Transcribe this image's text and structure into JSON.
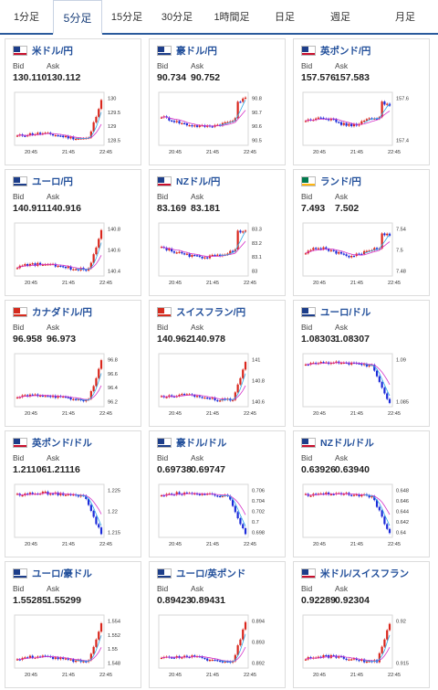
{
  "tabs": [
    {
      "label": "1分足",
      "active": false
    },
    {
      "label": "5分足",
      "active": true
    },
    {
      "label": "15分足",
      "active": false
    },
    {
      "label": "30分足",
      "active": false
    },
    {
      "label": "1時間足",
      "active": false
    },
    {
      "label": "日足",
      "active": false
    },
    {
      "label": "週足",
      "active": false
    },
    {
      "label": "月足",
      "active": false
    }
  ],
  "labels": {
    "bid": "Bid",
    "ask": "Ask"
  },
  "x_ticks": [
    "20:45",
    "21:45",
    "22:45"
  ],
  "colors": {
    "up": "#d9261c",
    "down": "#1c2bd9",
    "ma1": "#d433c9",
    "ma2": "#2fa9e6",
    "accent": "#2a5a9c"
  },
  "pairs": [
    {
      "name": "米ドル/円",
      "flag": "flag-us",
      "bid": "130.110",
      "ask": "130.112",
      "y_ticks": [
        "130",
        "129.5",
        "129",
        "128.5"
      ],
      "ylim": [
        128.4,
        130.1
      ],
      "trend": "spike-up"
    },
    {
      "name": "豪ドル/円",
      "flag": "flag-au",
      "bid": "90.734",
      "ask": "90.752",
      "y_ticks": [
        "90.8",
        "90.7",
        "90.6",
        "90.5"
      ],
      "ylim": [
        90.46,
        90.84
      ],
      "trend": "dip-recover"
    },
    {
      "name": "英ポンド/円",
      "flag": "flag-gb",
      "bid": "157.576",
      "ask": "157.583",
      "y_ticks": [
        "157.6",
        "157.4"
      ],
      "ylim": [
        157.2,
        157.7
      ],
      "trend": "volatile-up"
    },
    {
      "name": "ユーロ/円",
      "flag": "flag-eu",
      "bid": "140.911",
      "ask": "140.916",
      "y_ticks": [
        "140.8",
        "140.6",
        "140.4"
      ],
      "ylim": [
        140.3,
        140.95
      ],
      "trend": "spike-up"
    },
    {
      "name": "NZドル/円",
      "flag": "flag-nz",
      "bid": "83.169",
      "ask": "83.181",
      "y_ticks": [
        "83.3",
        "83.2",
        "83.1",
        "83"
      ],
      "ylim": [
        82.98,
        83.32
      ],
      "trend": "dip-recover"
    },
    {
      "name": "ランド/円",
      "flag": "flag-za",
      "bid": "7.493",
      "ask": "7.502",
      "y_ticks": [
        "7.54",
        "7.5",
        "7.48"
      ],
      "ylim": [
        7.47,
        7.55
      ],
      "trend": "volatile-up"
    },
    {
      "name": "カナダドル/円",
      "flag": "flag-ca",
      "bid": "96.958",
      "ask": "96.973",
      "y_ticks": [
        "96.8",
        "96.6",
        "96.4",
        "96.2"
      ],
      "ylim": [
        96.1,
        97.0
      ],
      "trend": "spike-up"
    },
    {
      "name": "スイスフラン/円",
      "flag": "flag-ch",
      "bid": "140.962",
      "ask": "140.978",
      "y_ticks": [
        "141",
        "140.8",
        "140.6"
      ],
      "ylim": [
        140.5,
        141.05
      ],
      "trend": "spike-up"
    },
    {
      "name": "ユーロ/ドル",
      "flag": "flag-eu",
      "bid": "1.08303",
      "ask": "1.08307",
      "y_ticks": [
        "1.09",
        "1.085"
      ],
      "ylim": [
        1.0825,
        1.0935
      ],
      "trend": "crash-down"
    },
    {
      "name": "英ポンド/ドル",
      "flag": "flag-gb",
      "bid": "1.21106",
      "ask": "1.21116",
      "y_ticks": [
        "1.225",
        "1.22",
        "1.215"
      ],
      "ylim": [
        1.209,
        1.227
      ],
      "trend": "crash-down"
    },
    {
      "name": "豪ドル/ドル",
      "flag": "flag-au",
      "bid": "0.69738",
      "ask": "0.69747",
      "y_ticks": [
        "0.706",
        "0.704",
        "0.702",
        "0.7",
        "0.698"
      ],
      "ylim": [
        0.697,
        0.7065
      ],
      "trend": "crash-down"
    },
    {
      "name": "NZドル/ドル",
      "flag": "flag-nz",
      "bid": "0.63926",
      "ask": "0.63940",
      "y_ticks": [
        "0.648",
        "0.646",
        "0.644",
        "0.642",
        "0.64"
      ],
      "ylim": [
        0.6388,
        0.6486
      ],
      "trend": "crash-down"
    },
    {
      "name": "ユーロ/豪ドル",
      "flag": "flag-eu",
      "bid": "1.55285",
      "ask": "1.55299",
      "y_ticks": [
        "1.554",
        "1.552",
        "1.55",
        "1.548"
      ],
      "ylim": [
        1.547,
        1.5545
      ],
      "trend": "spike-up"
    },
    {
      "name": "ユーロ/英ポンド",
      "flag": "flag-eu",
      "bid": "0.89423",
      "ask": "0.89431",
      "y_ticks": [
        "0.894",
        "0.893",
        "0.892"
      ],
      "ylim": [
        0.8912,
        0.8946
      ],
      "trend": "spike-up"
    },
    {
      "name": "米ドル/スイスフラン",
      "flag": "flag-us",
      "bid": "0.92289",
      "ask": "0.92304",
      "y_ticks": [
        "0.92",
        "0.915"
      ],
      "ylim": [
        0.913,
        0.9235
      ],
      "trend": "spike-up"
    }
  ]
}
